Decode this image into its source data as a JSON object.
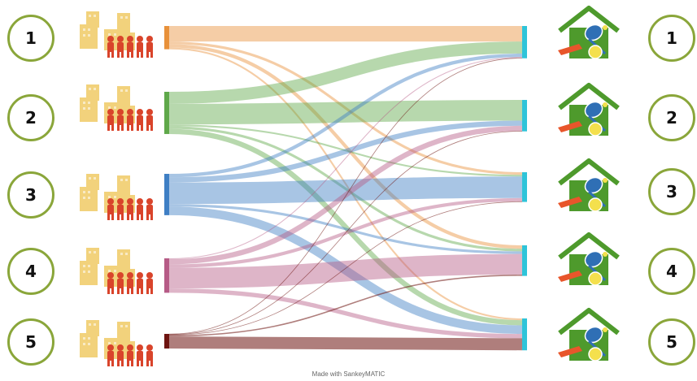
{
  "origins": [
    {
      "label": "1",
      "color": "#e8913a"
    },
    {
      "label": "2",
      "color": "#5fa84a"
    },
    {
      "label": "3",
      "color": "#3f7fc4"
    },
    {
      "label": "4",
      "color": "#b65b86"
    },
    {
      "label": "5",
      "color": "#6e1410"
    }
  ],
  "destinations": [
    {
      "label": "1",
      "color": "#2ec4d9"
    },
    {
      "label": "2",
      "color": "#2ec4d9"
    },
    {
      "label": "3",
      "color": "#2ec4d9"
    },
    {
      "label": "4",
      "color": "#2ec4d9"
    },
    {
      "label": "5",
      "color": "#2ec4d9"
    }
  ],
  "flows": [
    {
      "from": 0,
      "to": 0,
      "value": 18
    },
    {
      "from": 0,
      "to": 2,
      "value": 3
    },
    {
      "from": 0,
      "to": 3,
      "value": 4
    },
    {
      "from": 0,
      "to": 4,
      "value": 2
    },
    {
      "from": 1,
      "to": 0,
      "value": 14
    },
    {
      "from": 1,
      "to": 1,
      "value": 24
    },
    {
      "from": 1,
      "to": 2,
      "value": 2
    },
    {
      "from": 1,
      "to": 3,
      "value": 3
    },
    {
      "from": 1,
      "to": 4,
      "value": 6
    },
    {
      "from": 2,
      "to": 0,
      "value": 4
    },
    {
      "from": 2,
      "to": 1,
      "value": 6
    },
    {
      "from": 2,
      "to": 2,
      "value": 25
    },
    {
      "from": 2,
      "to": 3,
      "value": 3
    },
    {
      "from": 2,
      "to": 4,
      "value": 10
    },
    {
      "from": 3,
      "to": 0,
      "value": 1
    },
    {
      "from": 3,
      "to": 1,
      "value": 6
    },
    {
      "from": 3,
      "to": 2,
      "value": 4
    },
    {
      "from": 3,
      "to": 3,
      "value": 24
    },
    {
      "from": 3,
      "to": 4,
      "value": 5
    },
    {
      "from": 4,
      "to": 0,
      "value": 0.5
    },
    {
      "from": 4,
      "to": 1,
      "value": 0.5
    },
    {
      "from": 4,
      "to": 2,
      "value": 0.5
    },
    {
      "from": 4,
      "to": 3,
      "value": 1.5
    },
    {
      "from": 4,
      "to": 4,
      "value": 14
    }
  ],
  "icon_origin": "city-population-icon",
  "icon_destination": "sports-house-icon",
  "colors": {
    "circle_border": "#8aa63a",
    "people": "#d9442b",
    "buildings": "#f2d27c",
    "house": "#4e9a2c"
  },
  "footer": "Made with SankeyMATIC"
}
